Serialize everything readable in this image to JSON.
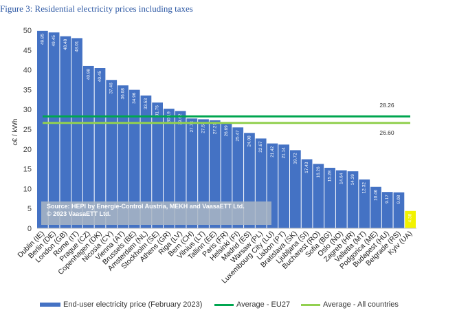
{
  "page_title": "Figure 3: Residential electricity prices including taxes",
  "source_note": {
    "line1": "Source: HEPI by Energie-Control Austria, MEKH and VaasaETT Ltd.",
    "line2": "© 2023 VaasaETT Ltd."
  },
  "legend": {
    "bars": "End-user electricity price (February 2023)",
    "eu27": "Average - EU27",
    "all": "Average - All countries"
  },
  "colors": {
    "bar": "#4472c4",
    "bar_highlight": "#f2f200",
    "eu27_line": "#00a650",
    "all_line": "#92d050"
  },
  "chart_data": {
    "type": "bar",
    "ylabel": "c€ / kWh",
    "ylim": [
      0,
      50
    ],
    "yticks": [
      0,
      5,
      10,
      15,
      20,
      25,
      30,
      35,
      40,
      45,
      50
    ],
    "grid": false,
    "categories": [
      "Dublin (IE)",
      "Berlin (DE)",
      "London (GB)",
      "Rome (IT)",
      "Prague (CZ)",
      "Copenhagen (DK)",
      "Nicosia (CY)",
      "Vienna (AT)",
      "Brussels (BE)",
      "Amsterdam (NL)",
      "Stockholm (SE)",
      "Athens (GR)",
      "Riga (LV)",
      "Bern (CH)",
      "Vilnius (LT)",
      "Tallinn (EE)",
      "Paris (FR)",
      "Helsinki (FI)",
      "Madrid (ES)",
      "Warsaw (PL)",
      "Luxembourg City (LU)",
      "Lisbon (PT)",
      "Bratislava (SK)",
      "Ljubljana (SI)",
      "Bucharest (RO)",
      "Sofia (BG)",
      "Oslo (NO)",
      "Zagreb (HR)",
      "Valletta (MT)",
      "Podgorica (ME)",
      "Budapest (HU)",
      "Belgrade (RS)",
      "Kyiv (UA)"
    ],
    "value_labels": [
      "49.85",
      "49.45",
      "48.48",
      "48.01",
      "40.98",
      "40.45",
      "37.46",
      "36.08",
      "34.96",
      "33.53",
      "31.75",
      "30.19",
      "29.62",
      "27.73",
      "27.53",
      "27.27",
      "26.69",
      "25.47",
      "24.08",
      "22.67",
      "21.42",
      "21.14",
      "19.72",
      "17.43",
      "16.26",
      "15.28",
      "14.64",
      "14.39",
      "12.32",
      "10.46",
      "9.17",
      "9.08",
      "4.38"
    ],
    "values": [
      49.85,
      49.45,
      48.48,
      48.01,
      40.98,
      40.45,
      37.46,
      36.08,
      34.96,
      33.53,
      31.75,
      30.19,
      29.62,
      27.73,
      27.53,
      27.27,
      26.69,
      25.47,
      24.08,
      22.67,
      21.42,
      21.14,
      19.72,
      17.43,
      16.26,
      15.28,
      14.64,
      14.39,
      12.32,
      10.46,
      9.17,
      9.08,
      4.38
    ],
    "highlight_index": 32,
    "reference_lines": [
      {
        "name": "Average - EU27",
        "value": 28.26,
        "label": "28.26"
      },
      {
        "name": "Average - All countries",
        "value": 26.6,
        "label": "26.60"
      }
    ]
  }
}
